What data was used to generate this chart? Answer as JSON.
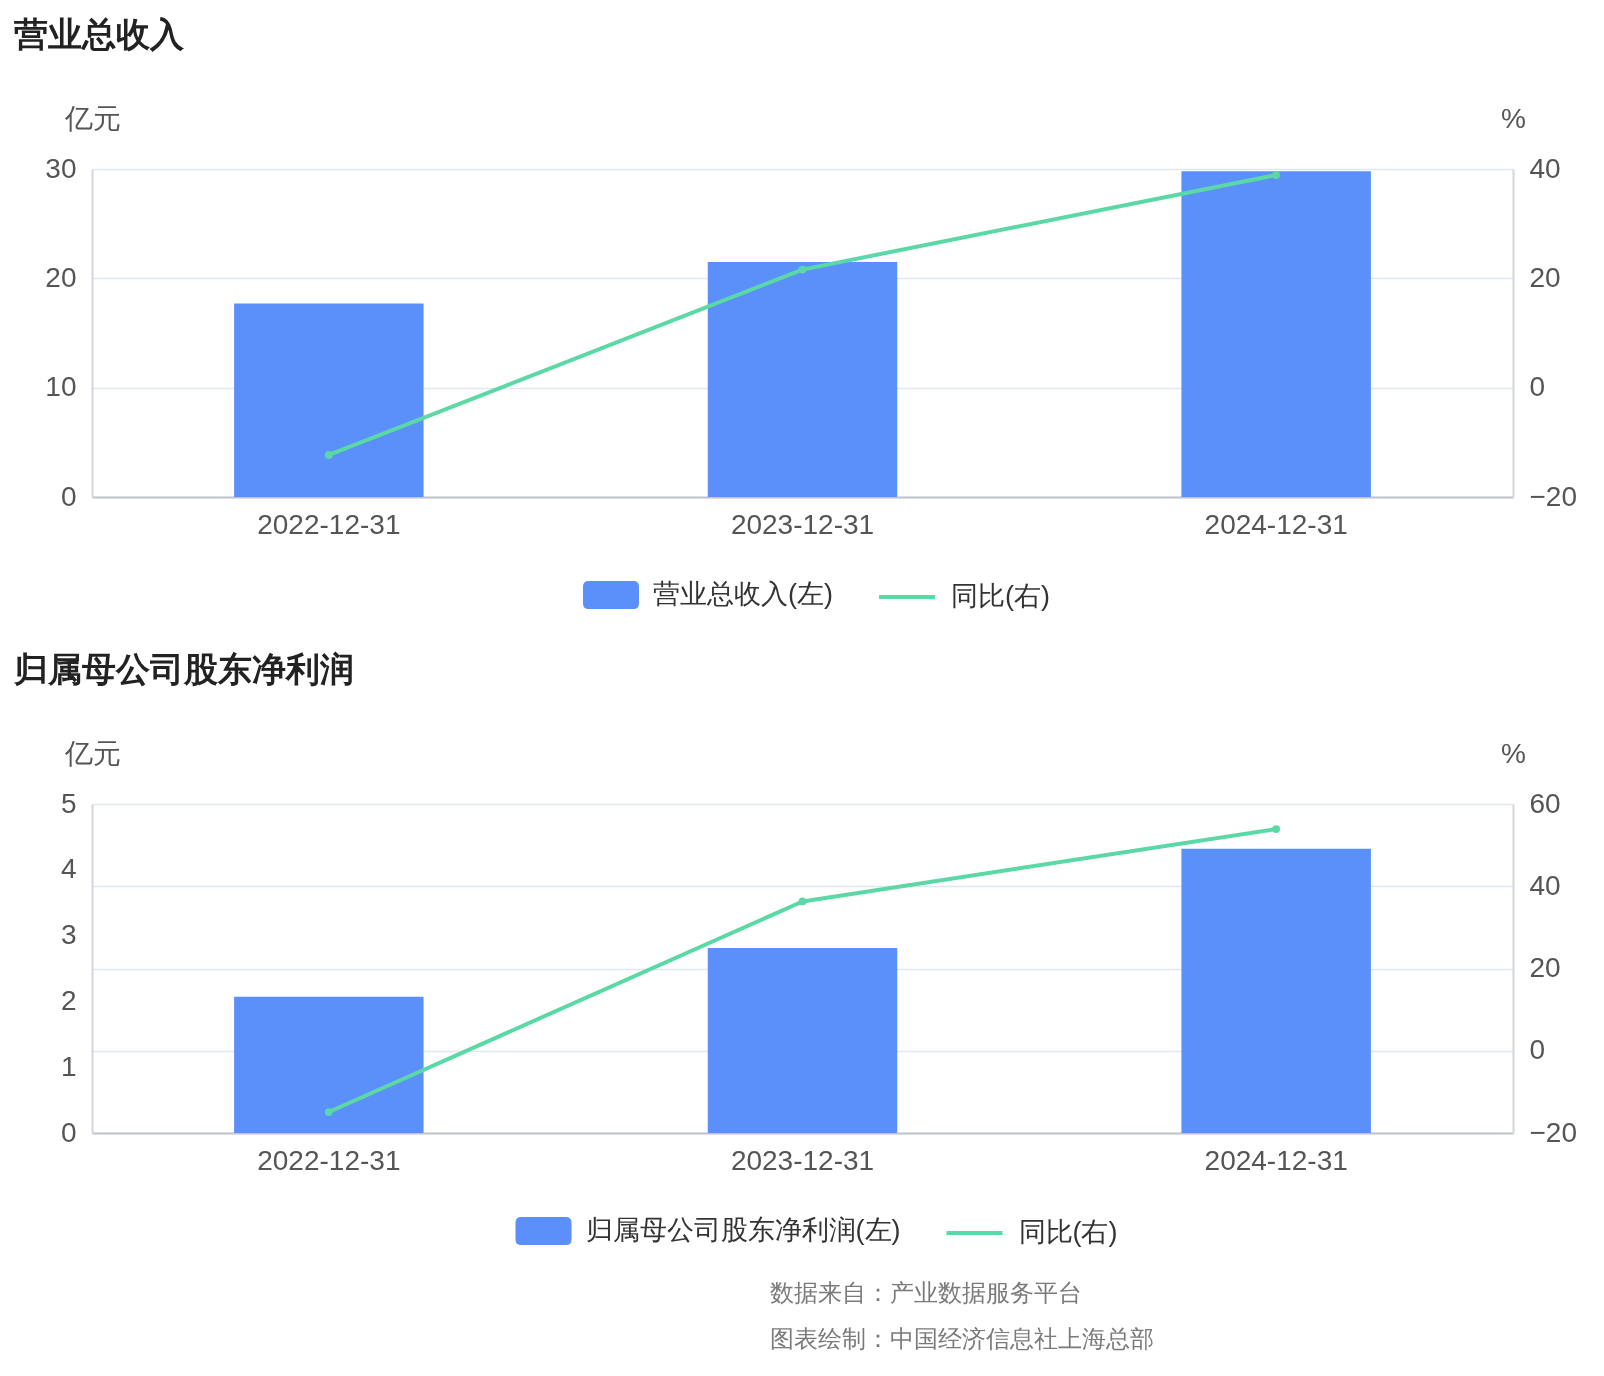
{
  "chart_data": [
    {
      "type": "bar",
      "title": "营业总收入",
      "categories": [
        "2022-12-31",
        "2023-12-31",
        "2024-12-31"
      ],
      "series": [
        {
          "name": "营业总收入(左)",
          "color": "#5b8ff9",
          "values": [
            17.7,
            21.5,
            29.8
          ]
        },
        {
          "name": "同比(右)",
          "type": "line",
          "axis": "y2",
          "color": "#5ad8a6",
          "values": [
            -12.3,
            21.6,
            38.9
          ]
        }
      ],
      "ylabel": "亿元",
      "y2label": "%",
      "ylim": [
        0,
        30
      ],
      "yticks": [
        0,
        10,
        20,
        30
      ],
      "y2lim": [
        -20,
        40
      ],
      "y2ticks": [
        -20,
        0,
        20,
        40
      ],
      "grid": "y",
      "legend": "bottom",
      "marker": "circle"
    },
    {
      "type": "bar",
      "title": "归属母公司股东净利润",
      "categories": [
        "2022-12-31",
        "2023-12-31",
        "2024-12-31"
      ],
      "series": [
        {
          "name": "归属母公司股东净利润(左)",
          "color": "#5b8ff9",
          "values": [
            2.07,
            2.81,
            4.32
          ]
        },
        {
          "name": "同比(右)",
          "type": "line",
          "axis": "y2",
          "color": "#5ad8a6",
          "values": [
            -14.9,
            36.3,
            53.9
          ]
        }
      ],
      "ylabel": "亿元",
      "y2label": "%",
      "ylim": [
        0,
        5
      ],
      "yticks": [
        0,
        1,
        2,
        3,
        4,
        5
      ],
      "y2lim": [
        -20,
        60
      ],
      "y2ticks": [
        -20,
        0,
        20,
        40,
        60
      ],
      "grid": "y2",
      "legend": "bottom",
      "marker": "circle",
      "annotations": [
        "数据来自：产业数据服务平台",
        "图表绘制：中国经济信息社上海总部"
      ]
    }
  ]
}
